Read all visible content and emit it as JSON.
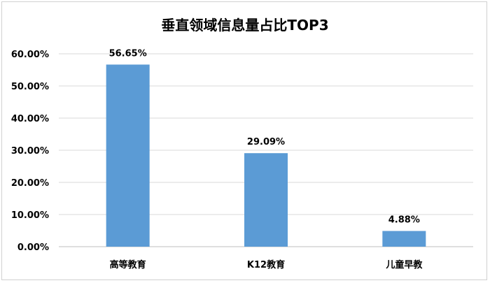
{
  "chart_data": {
    "type": "bar",
    "title": "垂直领域信息量占比TOP3",
    "categories": [
      "高等教育",
      "K12教育",
      "儿童早教"
    ],
    "values": [
      56.65,
      29.09,
      4.88
    ],
    "data_labels": [
      "56.65%",
      "29.09%",
      "4.88%"
    ],
    "y_ticks": [
      "0.00%",
      "10.00%",
      "20.00%",
      "30.00%",
      "40.00%",
      "50.00%",
      "60.00%"
    ],
    "ylim": [
      0,
      60
    ],
    "grid": true,
    "bar_color": "#5b9bd5",
    "xlabel": "",
    "ylabel": ""
  }
}
